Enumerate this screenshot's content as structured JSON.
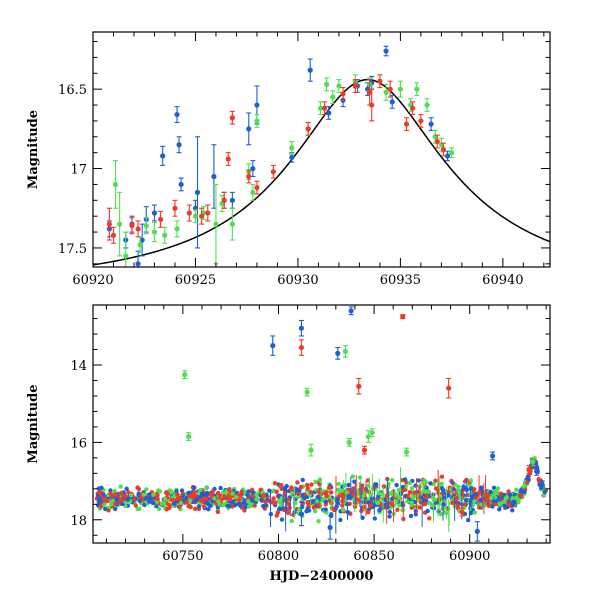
{
  "colors": {
    "blue": "#1f5fd6",
    "green": "#4fe04f",
    "red": "#f03a28",
    "black": "#000000",
    "background": "#ffffff"
  },
  "chart_data": [
    {
      "type": "scatter",
      "panel": "top",
      "title": "",
      "xlabel": "",
      "ylabel": "Magnitude",
      "xlim": [
        60920,
        60942.3
      ],
      "ylim": [
        17.62,
        16.14
      ],
      "y_inverted": true,
      "xticks": [
        "60920",
        "60925",
        "60930",
        "60935",
        "60940"
      ],
      "xtick_values": [
        60920,
        60925,
        60930,
        60935,
        60940
      ],
      "yticks": [
        "16.5",
        "17",
        "17.5"
      ],
      "ytick_values": [
        16.5,
        17.0,
        17.5
      ],
      "grid": false,
      "legend": "none",
      "model_curve": {
        "type": "microlensing-like peak",
        "t0": 60933.4,
        "peak_mag": 16.44,
        "base_mag": 17.76,
        "tE": 3.5,
        "x_range": [
          60920,
          60942.3
        ]
      },
      "series": [
        {
          "color": "blue",
          "points": [
            [
              60920.8,
              17.38,
              0.05
            ],
            [
              60921.6,
              17.45,
              0.05
            ],
            [
              60921.9,
              17.35,
              0.05
            ],
            [
              60922.2,
              17.6,
              0.08
            ],
            [
              60922.4,
              17.45,
              0.1
            ],
            [
              60922.6,
              17.32,
              0.08
            ],
            [
              60923.0,
              17.28,
              0.05
            ],
            [
              60923.4,
              16.92,
              0.06
            ],
            [
              60924.1,
              16.66,
              0.05
            ],
            [
              60924.2,
              16.85,
              0.05
            ],
            [
              60924.3,
              17.1,
              0.04
            ],
            [
              60925.0,
              17.25,
              0.05
            ],
            [
              60925.1,
              17.15,
              0.35
            ],
            [
              60925.9,
              17.05,
              0.2
            ],
            [
              60926.4,
              17.2,
              0.05
            ],
            [
              60926.8,
              17.2,
              0.05
            ],
            [
              60927.6,
              16.75,
              0.1
            ],
            [
              60927.8,
              17.0,
              0.05
            ],
            [
              60928.0,
              16.6,
              0.12
            ],
            [
              60929.7,
              16.93,
              0.03
            ],
            [
              60930.6,
              16.38,
              0.07
            ],
            [
              60931.5,
              16.65,
              0.04
            ],
            [
              60932.2,
              16.57,
              0.04
            ],
            [
              60932.9,
              16.48,
              0.04
            ],
            [
              60933.4,
              16.5,
              0.04
            ],
            [
              60933.6,
              16.46,
              0.04
            ],
            [
              60934.3,
              16.26,
              0.03
            ],
            [
              60934.6,
              16.58,
              0.04
            ],
            [
              60936.5,
              16.72,
              0.04
            ],
            [
              60937.3,
              16.92,
              0.03
            ]
          ]
        },
        {
          "color": "green",
          "points": [
            [
              60921.1,
              17.1,
              0.15
            ],
            [
              60921.3,
              17.35,
              0.2
            ],
            [
              60921.6,
              17.55,
              0.15
            ],
            [
              60922.3,
              17.48,
              0.05
            ],
            [
              60922.6,
              17.36,
              0.05
            ],
            [
              60923.0,
              17.4,
              0.06
            ],
            [
              60923.5,
              17.42,
              0.05
            ],
            [
              60924.1,
              17.38,
              0.05
            ],
            [
              60925.0,
              17.3,
              0.04
            ],
            [
              60925.4,
              17.28,
              0.04
            ],
            [
              60926.0,
              17.35,
              0.25
            ],
            [
              60926.3,
              17.22,
              0.05
            ],
            [
              60926.8,
              17.35,
              0.1
            ],
            [
              60927.6,
              17.02,
              0.05
            ],
            [
              60927.8,
              17.15,
              0.05
            ],
            [
              60928.0,
              16.7,
              0.04
            ],
            [
              60929.7,
              16.87,
              0.04
            ],
            [
              60930.5,
              16.75,
              0.04
            ],
            [
              60931.1,
              16.62,
              0.04
            ],
            [
              60931.4,
              16.47,
              0.04
            ],
            [
              60931.7,
              16.55,
              0.04
            ],
            [
              60932.0,
              16.48,
              0.04
            ],
            [
              60932.8,
              16.45,
              0.04
            ],
            [
              60933.5,
              16.47,
              0.04
            ],
            [
              60934.3,
              16.52,
              0.05
            ],
            [
              60935.0,
              16.5,
              0.05
            ],
            [
              60935.5,
              16.6,
              0.04
            ],
            [
              60935.8,
              16.5,
              0.04
            ],
            [
              60936.3,
              16.6,
              0.04
            ],
            [
              60936.7,
              16.8,
              0.04
            ],
            [
              60937.0,
              16.85,
              0.04
            ],
            [
              60937.5,
              16.9,
              0.03
            ]
          ]
        },
        {
          "color": "red",
          "points": [
            [
              60920.8,
              17.35,
              0.1
            ],
            [
              60921.0,
              17.42,
              0.05
            ],
            [
              60921.9,
              17.36,
              0.05
            ],
            [
              60922.2,
              17.38,
              0.05
            ],
            [
              60923.3,
              17.32,
              0.05
            ],
            [
              60924.0,
              17.25,
              0.05
            ],
            [
              60924.7,
              17.28,
              0.05
            ],
            [
              60925.3,
              17.3,
              0.05
            ],
            [
              60925.6,
              17.28,
              0.05
            ],
            [
              60926.4,
              17.2,
              0.05
            ],
            [
              60926.6,
              16.94,
              0.04
            ],
            [
              60926.8,
              16.68,
              0.04
            ],
            [
              60927.6,
              17.05,
              0.04
            ],
            [
              60928.0,
              17.12,
              0.04
            ],
            [
              60928.8,
              17.02,
              0.04
            ],
            [
              60930.5,
              16.75,
              0.04
            ],
            [
              60931.3,
              16.62,
              0.04
            ],
            [
              60932.2,
              16.53,
              0.04
            ],
            [
              60932.8,
              16.48,
              0.04
            ],
            [
              60933.5,
              16.52,
              0.08
            ],
            [
              60933.6,
              16.6,
              0.1
            ],
            [
              60934.0,
              16.45,
              0.04
            ],
            [
              60934.5,
              16.5,
              0.05
            ],
            [
              60935.3,
              16.72,
              0.04
            ],
            [
              60935.6,
              16.62,
              0.04
            ],
            [
              60936.0,
              16.7,
              0.04
            ],
            [
              60936.8,
              16.83,
              0.04
            ],
            [
              60937.1,
              16.88,
              0.04
            ]
          ]
        }
      ]
    },
    {
      "type": "scatter",
      "panel": "bottom",
      "title": "",
      "xlabel": "HJD−2400000",
      "ylabel": "Magnitude",
      "xlim": [
        60703,
        60942
      ],
      "ylim": [
        18.6,
        12.45
      ],
      "y_inverted": true,
      "xticks": [
        "60750",
        "60800",
        "60850",
        "60900"
      ],
      "xtick_values": [
        60750,
        60800,
        60850,
        60900
      ],
      "yticks": [
        "14",
        "16",
        "18"
      ],
      "ytick_values": [
        14,
        16,
        18
      ],
      "grid": false,
      "legend": "none",
      "dense_band": {
        "description": "baseline cluster of many points",
        "x_range": [
          60705,
          60925
        ],
        "mag_center": 17.45,
        "mag_spread": 0.25,
        "colors": [
          "blue",
          "green",
          "red"
        ]
      },
      "series": [
        {
          "color": "blue",
          "points": [
            [
              60797,
              13.5,
              0.25
            ],
            [
              60812,
              13.05,
              0.2
            ],
            [
              60831,
              13.7,
              0.15
            ],
            [
              60838,
              12.6,
              0.1
            ],
            [
              60912,
              16.35,
              0.1
            ],
            [
              60812,
              17.85,
              0.3
            ],
            [
              60827,
              18.2,
              0.3
            ],
            [
              60904,
              18.3,
              0.25
            ],
            [
              60935,
              16.75,
              0.1
            ],
            [
              60938,
              17.1,
              0.1
            ]
          ]
        },
        {
          "color": "green",
          "points": [
            [
              60751,
              14.25,
              0.1
            ],
            [
              60753,
              15.85,
              0.1
            ],
            [
              60815,
              14.7,
              0.1
            ],
            [
              60817,
              16.2,
              0.15
            ],
            [
              60835,
              13.65,
              0.15
            ],
            [
              60837,
              16.0,
              0.1
            ],
            [
              60847,
              15.85,
              0.15
            ],
            [
              60849,
              15.75,
              0.1
            ],
            [
              60867,
              16.25,
              0.1
            ],
            [
              60876,
              17.05,
              0.1
            ],
            [
              60933,
              16.5,
              0.1
            ]
          ]
        },
        {
          "color": "red",
          "points": [
            [
              60812,
              13.55,
              0.2
            ],
            [
              60842,
              14.55,
              0.2
            ],
            [
              60845,
              16.2,
              0.1
            ],
            [
              60865,
              12.75,
              0.05
            ],
            [
              60889,
              14.6,
              0.25
            ],
            [
              60896,
              17.8,
              0.1
            ],
            [
              60931,
              16.7,
              0.1
            ]
          ]
        }
      ]
    }
  ]
}
